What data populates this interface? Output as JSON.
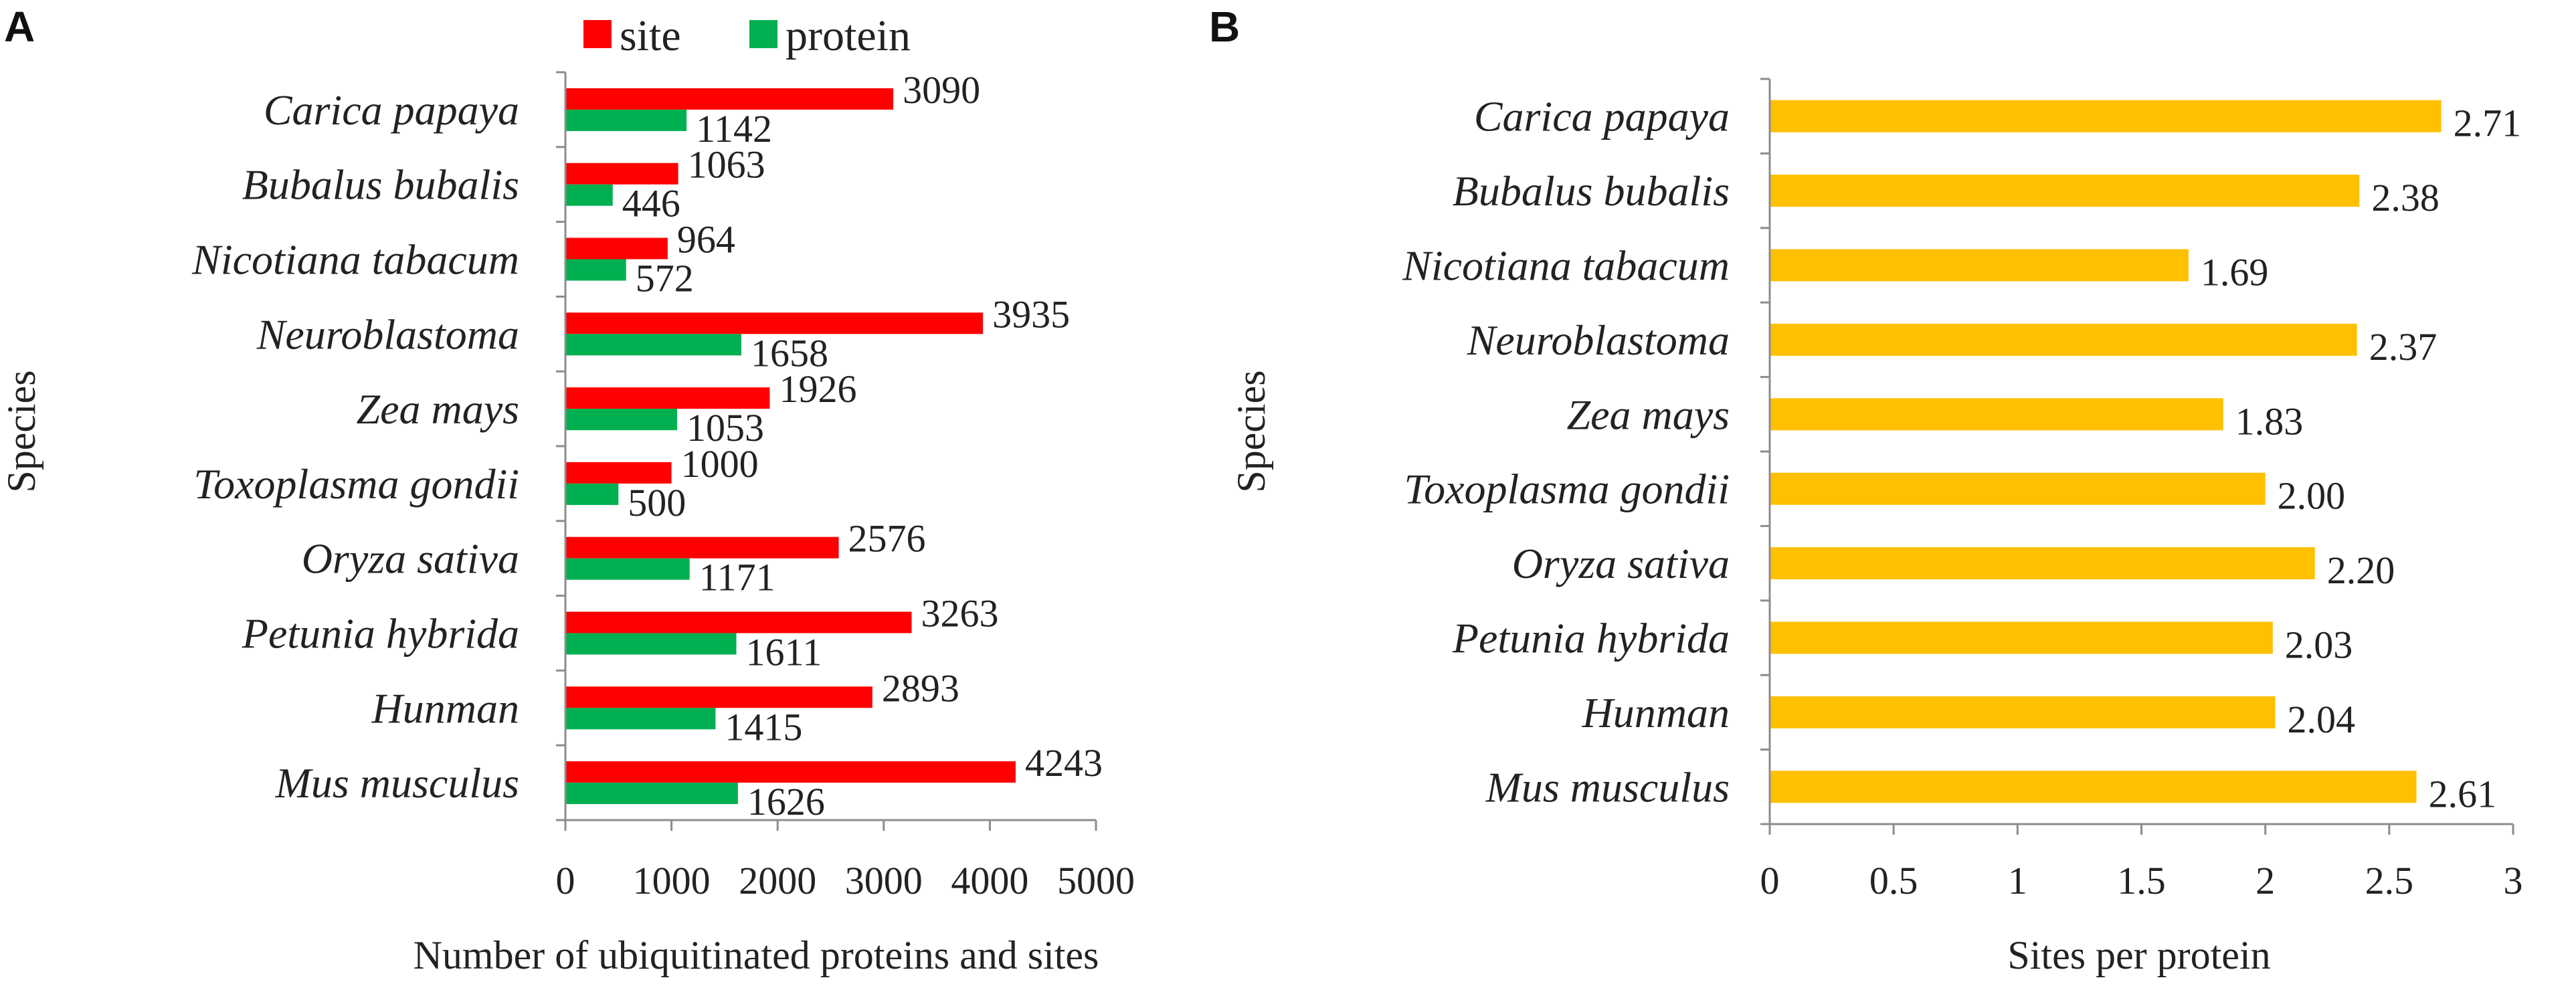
{
  "chart_data": [
    {
      "panel": "A",
      "type": "bar",
      "orientation": "horizontal",
      "categories": [
        "Carica papaya",
        "Bubalus bubalis",
        "Nicotiana tabacum",
        "Neuroblastoma",
        "Zea mays",
        "Toxoplasma gondii",
        "Oryza sativa",
        "Petunia hybrida",
        "Hunman",
        "Mus musculus"
      ],
      "series": [
        {
          "name": "site",
          "color": "#ff0000",
          "values": [
            3090,
            1063,
            964,
            3935,
            1926,
            1000,
            2576,
            3263,
            2893,
            4243
          ]
        },
        {
          "name": "protein",
          "color": "#00b050",
          "values": [
            1142,
            446,
            572,
            1658,
            1053,
            500,
            1171,
            1611,
            1415,
            1626
          ]
        }
      ],
      "xlabel": "Number of ubiquitinated proteins and sites",
      "ylabel": "Species",
      "xlim": [
        0,
        5000
      ],
      "xticks": [
        "0",
        "1000",
        "2000",
        "3000",
        "4000",
        "5000"
      ],
      "tick_values": [
        0,
        1000,
        2000,
        3000,
        4000,
        5000
      ],
      "legend_position": "top"
    },
    {
      "panel": "B",
      "type": "bar",
      "orientation": "horizontal",
      "categories": [
        "Carica papaya",
        "Bubalus bubalis",
        "Nicotiana tabacum",
        "Neuroblastoma",
        "Zea mays",
        "Toxoplasma gondii",
        "Oryza sativa",
        "Petunia hybrida",
        "Hunman",
        "Mus musculus"
      ],
      "series": [
        {
          "name": "Sites per protein",
          "color": "#ffc000",
          "values": [
            2.71,
            2.38,
            1.69,
            2.37,
            1.83,
            2.0,
            2.2,
            2.03,
            2.04,
            2.61
          ]
        }
      ],
      "value_labels": [
        "2.71",
        "2.38",
        "1.69",
        "2.37",
        "1.83",
        "2.00",
        "2.20",
        "2.03",
        "2.04",
        "2.61"
      ],
      "xlabel": "Sites per protein",
      "ylabel": "Species",
      "xlim": [
        0,
        3
      ],
      "xticks": [
        "0",
        "0.5",
        "1",
        "1.5",
        "2",
        "2.5",
        "3"
      ],
      "tick_values": [
        0,
        0.5,
        1,
        1.5,
        2,
        2.5,
        3
      ]
    }
  ]
}
